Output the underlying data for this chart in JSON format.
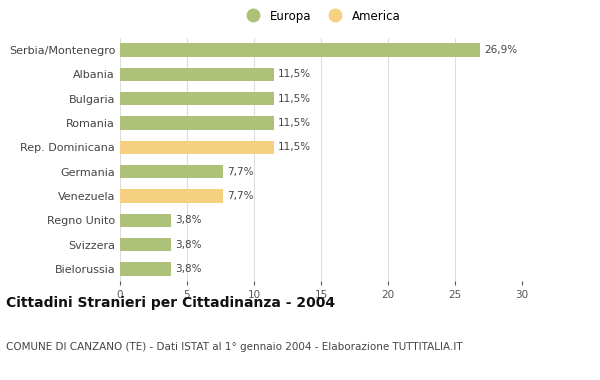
{
  "categories": [
    "Serbia/Montenegro",
    "Albania",
    "Bulgaria",
    "Romania",
    "Rep. Dominicana",
    "Germania",
    "Venezuela",
    "Regno Unito",
    "Svizzera",
    "Bielorussia"
  ],
  "values": [
    26.9,
    11.5,
    11.5,
    11.5,
    11.5,
    7.7,
    7.7,
    3.8,
    3.8,
    3.8
  ],
  "labels": [
    "26,9%",
    "11,5%",
    "11,5%",
    "11,5%",
    "11,5%",
    "7,7%",
    "7,7%",
    "3,8%",
    "3,8%",
    "3,8%"
  ],
  "colors": [
    "#adc178",
    "#adc178",
    "#adc178",
    "#adc178",
    "#f5d080",
    "#adc178",
    "#f5d080",
    "#adc178",
    "#adc178",
    "#adc178"
  ],
  "europa_color": "#adc178",
  "america_color": "#f5d080",
  "xlim": [
    0,
    30
  ],
  "xticks": [
    0,
    5,
    10,
    15,
    20,
    25,
    30
  ],
  "title": "Cittadini Stranieri per Cittadinanza - 2004",
  "subtitle": "COMUNE DI CANZANO (TE) - Dati ISTAT al 1° gennaio 2004 - Elaborazione TUTTITALIA.IT",
  "legend_europa": "Europa",
  "legend_america": "America",
  "background_color": "#ffffff",
  "grid_color": "#dddddd",
  "bar_height": 0.55,
  "label_fontsize": 7.5,
  "title_fontsize": 10,
  "subtitle_fontsize": 7.5
}
